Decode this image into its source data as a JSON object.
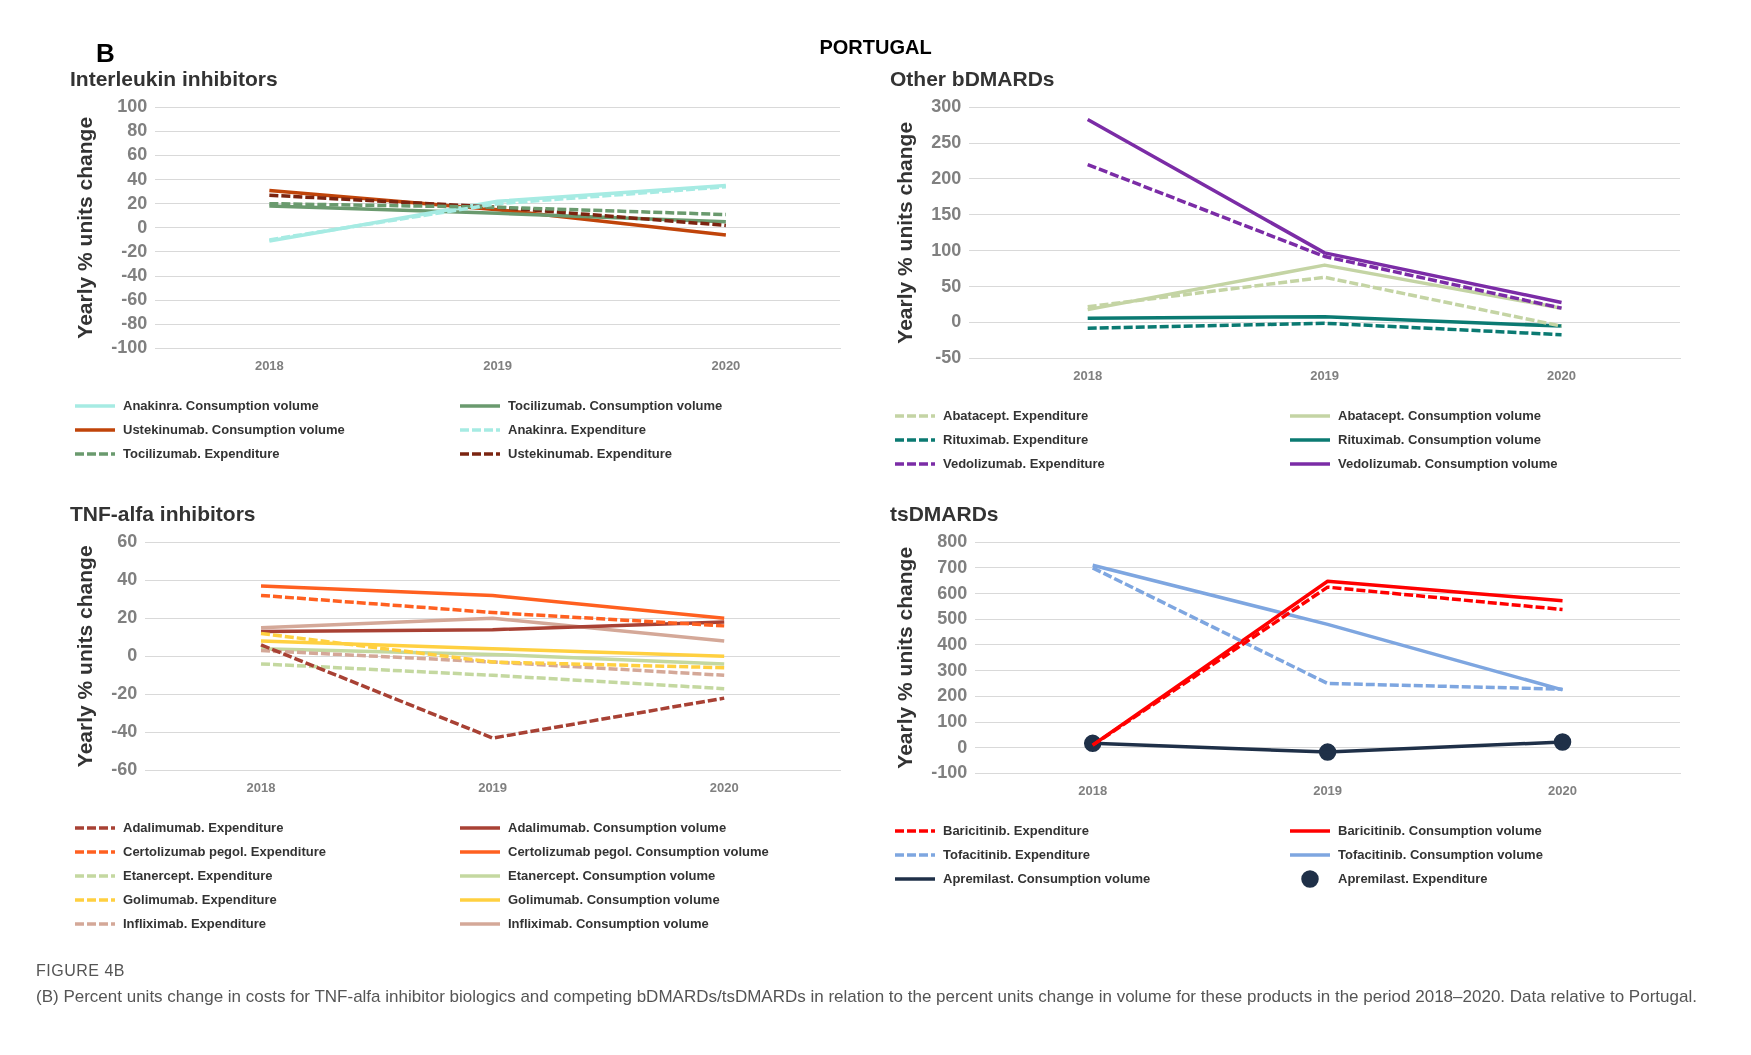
{
  "chart_data": [
    {
      "type": "line",
      "title": "Interleukin inhibitors",
      "ylabel": "Yearly % units change",
      "categories": [
        "2018",
        "2019",
        "2020"
      ],
      "ylim": [
        -100,
        100
      ],
      "yticks": [
        -100,
        -80,
        -60,
        -40,
        -20,
        0,
        20,
        40,
        60,
        80,
        100
      ],
      "grid": "y",
      "legend": "bottom",
      "annotations": [
        "B",
        "PORTUGAL"
      ],
      "series": [
        {
          "name": "Anakinra. Consumption volume",
          "color": "#a6ebe3",
          "line_style": "solid",
          "values": [
            -11,
            22,
            35
          ]
        },
        {
          "name": "Tocilizumab. Consumption volume",
          "color": "#6a9a6e",
          "line_style": "solid",
          "values": [
            18,
            12,
            5
          ]
        },
        {
          "name": "Ustekinumab. Consumption volume",
          "color": "#c0440a",
          "line_style": "solid",
          "values": [
            31,
            15,
            -6
          ]
        },
        {
          "name": "Anakinra. Expenditure",
          "color": "#a6ebe3",
          "line_style": "dashed",
          "values": [
            -10,
            20,
            34
          ]
        },
        {
          "name": "Tocilizumab. Expenditure",
          "color": "#6a9a6e",
          "line_style": "dashed",
          "values": [
            20,
            17,
            11
          ]
        },
        {
          "name": "Ustekinumab. Expenditure",
          "color": "#7b2410",
          "line_style": "dashed",
          "values": [
            27,
            17,
            2
          ]
        }
      ]
    },
    {
      "type": "line",
      "title": "Other bDMARDs",
      "ylabel": "Yearly % units change",
      "categories": [
        "2018",
        "2019",
        "2020"
      ],
      "ylim": [
        -50,
        300
      ],
      "yticks": [
        -50,
        0,
        50,
        100,
        150,
        200,
        250,
        300
      ],
      "grid": "y",
      "legend": "bottom",
      "series": [
        {
          "name": "Abatacept. Expenditure",
          "color": "#c4d4a4",
          "line_style": "dashed",
          "values": [
            22,
            63,
            -5
          ]
        },
        {
          "name": "Abatacept. Consumption volume",
          "color": "#c4d4a4",
          "line_style": "solid",
          "values": [
            18,
            80,
            20
          ]
        },
        {
          "name": "Rituximab. Expenditure",
          "color": "#0b7a72",
          "line_style": "dashed",
          "values": [
            -8,
            -1,
            -17
          ]
        },
        {
          "name": "Rituximab. Consumption volume",
          "color": "#0b7a72",
          "line_style": "solid",
          "values": [
            6,
            8,
            -5
          ]
        },
        {
          "name": "Vedolizumab. Expenditure",
          "color": "#7b2ca6",
          "line_style": "dashed",
          "values": [
            220,
            92,
            20
          ]
        },
        {
          "name": "Vedolizumab. Consumption volume",
          "color": "#7b2ca6",
          "line_style": "solid",
          "values": [
            283,
            97,
            28
          ]
        }
      ]
    },
    {
      "type": "line",
      "title": "TNF-alfa inhibitors",
      "ylabel": "Yearly % units change",
      "categories": [
        "2018",
        "2019",
        "2020"
      ],
      "ylim": [
        -60,
        60
      ],
      "yticks": [
        -60,
        -40,
        -20,
        0,
        20,
        40,
        60
      ],
      "grid": "y",
      "legend": "bottom",
      "series": [
        {
          "name": "Adalimumab. Expenditure",
          "color": "#a84134",
          "line_style": "dashed",
          "values": [
            6,
            -43,
            -22
          ]
        },
        {
          "name": "Adalimumab. Consumption volume",
          "color": "#a84134",
          "line_style": "solid",
          "values": [
            13,
            14,
            18
          ]
        },
        {
          "name": "Certolizumab pegol. Expenditure",
          "color": "#ff6020",
          "line_style": "dashed",
          "values": [
            32,
            23,
            16
          ]
        },
        {
          "name": "Certolizumab pegol. Consumption volume",
          "color": "#ff6020",
          "line_style": "solid",
          "values": [
            37,
            32,
            20
          ]
        },
        {
          "name": "Etanercept. Expenditure",
          "color": "#c4d8a0",
          "line_style": "dashed",
          "values": [
            -4,
            -10,
            -17
          ]
        },
        {
          "name": "Etanercept. Consumption volume",
          "color": "#c4d8a0",
          "line_style": "solid",
          "values": [
            4,
            1,
            -4
          ]
        },
        {
          "name": "Golimumab. Expenditure",
          "color": "#ffd040",
          "line_style": "dashed",
          "values": [
            12,
            -3,
            -6
          ]
        },
        {
          "name": "Golimumab. Consumption volume",
          "color": "#ffd040",
          "line_style": "solid",
          "values": [
            8,
            4,
            0
          ]
        },
        {
          "name": "Infliximab. Expenditure",
          "color": "#d4a898",
          "line_style": "dashed",
          "values": [
            3,
            -3,
            -10
          ]
        },
        {
          "name": "Infliximab. Consumption volume",
          "color": "#d4a898",
          "line_style": "solid",
          "values": [
            15,
            20,
            8
          ]
        }
      ]
    },
    {
      "type": "line",
      "title": "tsDMARDs",
      "ylabel": "Yearly % units change",
      "categories": [
        "2018",
        "2019",
        "2020"
      ],
      "ylim": [
        -100,
        800
      ],
      "yticks": [
        -100,
        0,
        100,
        200,
        300,
        400,
        500,
        600,
        700,
        800
      ],
      "grid": "y",
      "legend": "bottom",
      "annotations": [
        "FIGURE 4B",
        "(B) Percent units change in costs for TNF-alfa inhibitor biologics and competing bDMARDs/tsDMARDs in relation to the percent units change in volume for these products in the period 2018–2020. Data relative to Portugal."
      ],
      "series": [
        {
          "name": "Baricitinib. Expenditure",
          "color": "#ff0000",
          "line_style": "dashed",
          "values": [
            10,
            625,
            538
          ]
        },
        {
          "name": "Baricitinib. Consumption volume",
          "color": "#ff0000",
          "line_style": "solid",
          "values": [
            10,
            648,
            572
          ]
        },
        {
          "name": "Tofacitinib. Expenditure",
          "color": "#7ea6e0",
          "line_style": "dashed",
          "values": [
            700,
            250,
            228
          ]
        },
        {
          "name": "Tofacitinib. Consumption volume",
          "color": "#7ea6e0",
          "line_style": "solid",
          "values": [
            710,
            480,
            225
          ]
        },
        {
          "name": "Apremilast. Consumption volume",
          "color": "#1f3048",
          "line_style": "solid",
          "values": [
            17,
            -17,
            22
          ]
        },
        {
          "type": "scatter",
          "name": "Apremilast. Expenditure",
          "color": "#1f3048",
          "marker": "circle",
          "values": [
            17,
            -17,
            22
          ]
        }
      ]
    }
  ]
}
